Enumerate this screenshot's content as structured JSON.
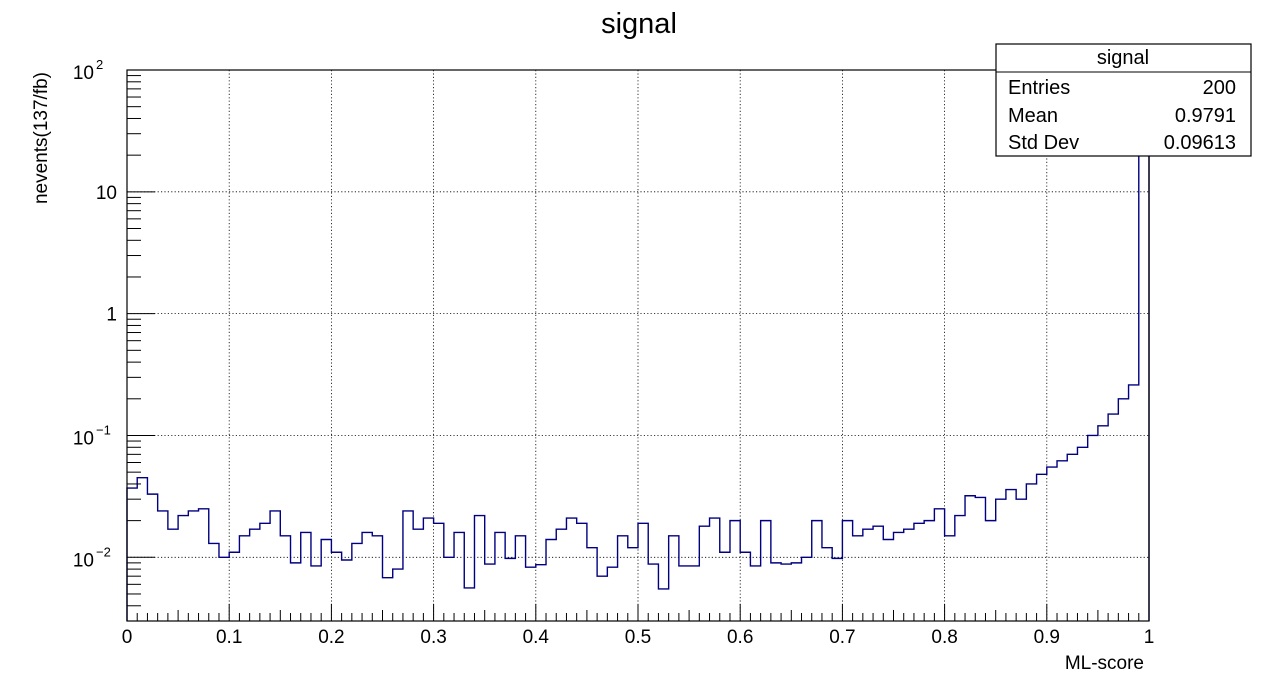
{
  "chart_data": {
    "type": "histogram",
    "title": "signal",
    "xlabel": "ML-score",
    "ylabel": "nevents(137/fb)",
    "xlim": [
      0,
      1
    ],
    "ylim": [
      0.003,
      100
    ],
    "y_scale": "log",
    "grid": true,
    "line_color": "#000080",
    "n_bins": 100,
    "x_ticks": [
      {
        "value": 0,
        "label": "0"
      },
      {
        "value": 0.1,
        "label": "0.1"
      },
      {
        "value": 0.2,
        "label": "0.2"
      },
      {
        "value": 0.3,
        "label": "0.3"
      },
      {
        "value": 0.4,
        "label": "0.4"
      },
      {
        "value": 0.5,
        "label": "0.5"
      },
      {
        "value": 0.6,
        "label": "0.6"
      },
      {
        "value": 0.7,
        "label": "0.7"
      },
      {
        "value": 0.8,
        "label": "0.8"
      },
      {
        "value": 0.9,
        "label": "0.9"
      },
      {
        "value": 1,
        "label": "1"
      }
    ],
    "y_ticks": [
      {
        "value": 100,
        "base": "10",
        "exp": "2"
      },
      {
        "value": 10,
        "base": "10",
        "exp": ""
      },
      {
        "value": 1,
        "base": "1",
        "exp": ""
      },
      {
        "value": 0.1,
        "base": "10",
        "exp": "−1"
      },
      {
        "value": 0.01,
        "base": "10",
        "exp": "−2"
      }
    ],
    "values": [
      0.037,
      0.045,
      0.033,
      0.024,
      0.017,
      0.022,
      0.024,
      0.025,
      0.013,
      0.01,
      0.011,
      0.015,
      0.017,
      0.019,
      0.024,
      0.015,
      0.009,
      0.016,
      0.0085,
      0.014,
      0.011,
      0.0095,
      0.013,
      0.016,
      0.015,
      0.0068,
      0.008,
      0.024,
      0.017,
      0.021,
      0.019,
      0.01,
      0.016,
      0.0056,
      0.022,
      0.0088,
      0.016,
      0.0098,
      0.015,
      0.0083,
      0.0087,
      0.014,
      0.017,
      0.021,
      0.019,
      0.012,
      0.007,
      0.0083,
      0.015,
      0.012,
      0.019,
      0.0088,
      0.0055,
      0.015,
      0.0085,
      0.0085,
      0.018,
      0.021,
      0.011,
      0.02,
      0.011,
      0.0085,
      0.02,
      0.009,
      0.0088,
      0.009,
      0.01,
      0.02,
      0.012,
      0.0098,
      0.02,
      0.015,
      0.017,
      0.018,
      0.014,
      0.016,
      0.017,
      0.019,
      0.02,
      0.025,
      0.015,
      0.022,
      0.032,
      0.031,
      0.02,
      0.03,
      0.036,
      0.03,
      0.04,
      0.048,
      0.055,
      0.062,
      0.07,
      0.08,
      0.1,
      0.12,
      0.15,
      0.2,
      0.26,
      60
    ]
  },
  "stats_box": {
    "title": "signal",
    "rows": [
      {
        "label": "Entries",
        "value": "200"
      },
      {
        "label": "Mean",
        "value": "0.9791"
      },
      {
        "label": "Std Dev",
        "value": "0.09613"
      }
    ]
  }
}
